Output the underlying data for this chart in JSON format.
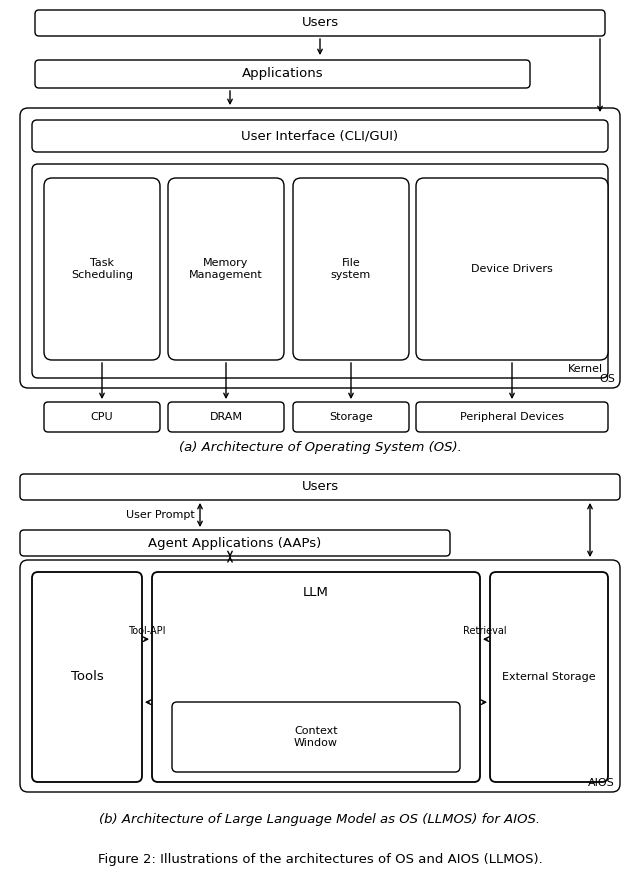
{
  "bg_color": "#ffffff",
  "text_color": "#000000",
  "box_edge_color": "#000000",
  "fig_width": 6.4,
  "fig_height": 8.93,
  "caption_a": "(a) Architecture of Operating System (OS).",
  "caption_b": "(b) Architecture of Large Language Model as OS (LLMOS) for AIOS.",
  "caption_fig": "Figure 2: Illustrations of the architectures of OS and AIOS (LLMOS)."
}
